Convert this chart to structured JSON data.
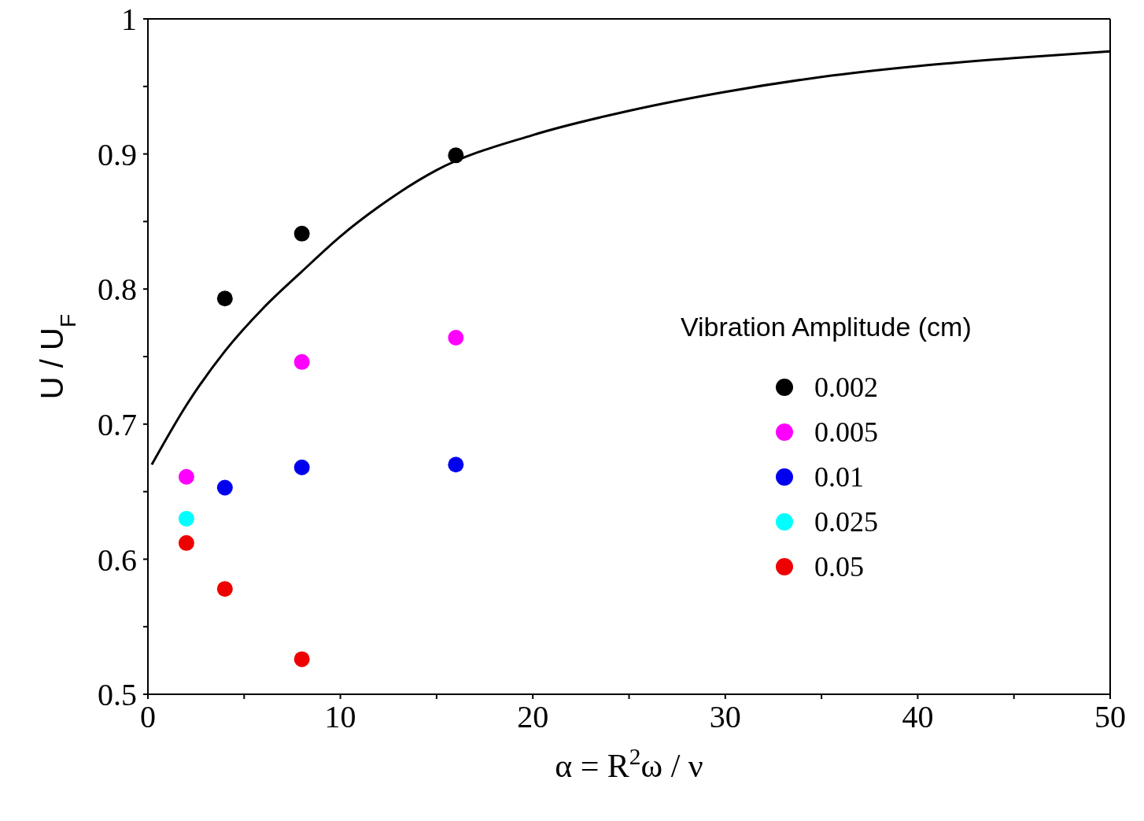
{
  "chart_data": {
    "type": "scatter",
    "xlabel": "α = R$^{2}$ω / ν",
    "ylabel": "U / U$_{F}$",
    "legend_title": "Vibration Amplitude (cm)",
    "legend": "right",
    "marker": "circle",
    "xlim": [
      0,
      50
    ],
    "ylim": [
      0.5,
      1
    ],
    "xticks": [
      0,
      {
        "value": 5,
        "label": null
      },
      10,
      {
        "value": 15,
        "label": null
      },
      20,
      {
        "value": 25,
        "label": null
      },
      30,
      {
        "value": 35,
        "label": null
      },
      40,
      {
        "value": 45,
        "label": null
      },
      50
    ],
    "yticks": [
      0.5,
      {
        "value": 0.55,
        "label": null
      },
      0.6,
      {
        "value": 0.65,
        "label": null
      },
      0.7,
      {
        "value": 0.75,
        "label": null
      },
      0.8,
      {
        "value": 0.85,
        "label": null
      },
      0.9,
      {
        "value": 0.95,
        "label": null
      },
      1
    ],
    "series": [
      {
        "name": "0.002",
        "color": "#000000",
        "x": [
          4,
          8,
          16
        ],
        "values": [
          0.793,
          0.841,
          0.899
        ]
      },
      {
        "name": "0.005",
        "color": "#ff00ff",
        "x": [
          2,
          8,
          16
        ],
        "values": [
          0.661,
          0.746,
          0.764
        ]
      },
      {
        "name": "0.01",
        "color": "#0000ee",
        "x": [
          4,
          8,
          16
        ],
        "values": [
          0.653,
          0.668,
          0.67
        ]
      },
      {
        "name": "0.025",
        "color": "#00ffff",
        "x": [
          2
        ],
        "values": [
          0.63
        ]
      },
      {
        "name": "0.05",
        "color": "#ee0000",
        "x": [
          2,
          4,
          8
        ],
        "values": [
          0.612,
          0.578,
          0.526
        ]
      },
      {
        "type": "line",
        "color": "#000000",
        "marker": "none",
        "line_style": "solid",
        "x": [
          0.2,
          2,
          4,
          6,
          8,
          10,
          12,
          15,
          20,
          25,
          30,
          35,
          40,
          45,
          50
        ],
        "values": [
          0.67,
          0.714,
          0.754,
          0.786,
          0.813,
          0.839,
          0.861,
          0.888,
          0.914,
          0.932,
          0.946,
          0.957,
          0.965,
          0.971,
          0.976
        ]
      }
    ]
  }
}
